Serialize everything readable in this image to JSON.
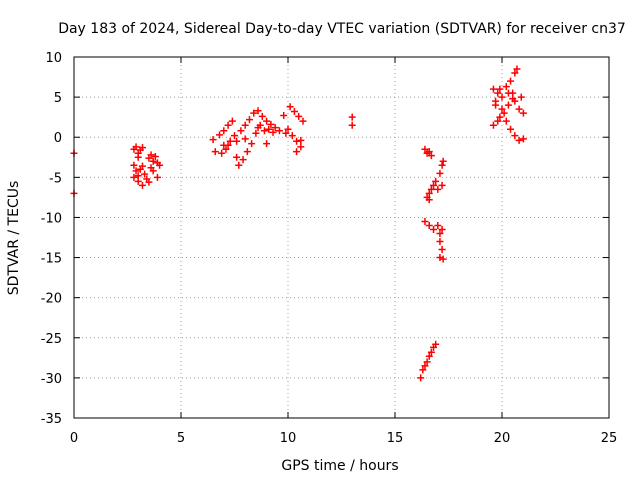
{
  "chart_data": {
    "type": "scatter",
    "title": "Day 183 of 2024, Sidereal Day-to-day VTEC variation (SDTVAR) for receiver cn37",
    "xlabel": "GPS time / hours",
    "ylabel": "SDTVAR / TECUs",
    "xlim": [
      0,
      25
    ],
    "ylim": [
      -35,
      10
    ],
    "xticks": [
      "0",
      "5",
      "10",
      "15",
      "20",
      "25"
    ],
    "yticks": [
      "10",
      "5",
      "0",
      "-5",
      "-10",
      "-15",
      "-20",
      "-25",
      "-30",
      "-35"
    ],
    "grid": true,
    "marker": "plus",
    "color": "#ff0000",
    "series": [
      {
        "name": "SDTVAR",
        "points": [
          [
            0,
            -2.0
          ],
          [
            0,
            -7.0
          ],
          [
            2.8,
            -1.5
          ],
          [
            2.9,
            -1.2
          ],
          [
            3.0,
            -2.0
          ],
          [
            3.1,
            -1.6
          ],
          [
            3.2,
            -1.3
          ],
          [
            3.0,
            -2.5
          ],
          [
            2.8,
            -3.5
          ],
          [
            2.9,
            -4.2
          ],
          [
            3.0,
            -4.8
          ],
          [
            3.1,
            -4.0
          ],
          [
            3.2,
            -3.6
          ],
          [
            2.8,
            -5.0
          ],
          [
            3.0,
            -5.5
          ],
          [
            3.2,
            -6.0
          ],
          [
            3.4,
            -5.2
          ],
          [
            3.3,
            -4.6
          ],
          [
            3.5,
            -2.6
          ],
          [
            3.6,
            -2.2
          ],
          [
            3.7,
            -3.0
          ],
          [
            3.8,
            -2.4
          ],
          [
            3.9,
            -3.2
          ],
          [
            3.6,
            -3.8
          ],
          [
            3.7,
            -4.2
          ],
          [
            3.9,
            -5.0
          ],
          [
            4.0,
            -3.5
          ],
          [
            3.5,
            -5.6
          ],
          [
            6.5,
            -0.3
          ],
          [
            6.6,
            -1.8
          ],
          [
            6.8,
            0.3
          ],
          [
            6.9,
            -2.0
          ],
          [
            7.0,
            0.8
          ],
          [
            7.1,
            -1.5
          ],
          [
            7.2,
            1.5
          ],
          [
            7.3,
            -0.5
          ],
          [
            7.4,
            2.0
          ],
          [
            7.5,
            0.2
          ],
          [
            7.6,
            -2.5
          ],
          [
            7.7,
            -3.5
          ],
          [
            7.8,
            0.8
          ],
          [
            7.9,
            -2.8
          ],
          [
            8.0,
            1.5
          ],
          [
            8.1,
            -1.8
          ],
          [
            8.2,
            2.2
          ],
          [
            8.3,
            -0.8
          ],
          [
            8.4,
            3.0
          ],
          [
            8.5,
            0.5
          ],
          [
            8.6,
            3.3
          ],
          [
            8.7,
            1.5
          ],
          [
            8.8,
            2.6
          ],
          [
            8.9,
            0.8
          ],
          [
            9.0,
            2.0
          ],
          [
            9.1,
            1.0
          ],
          [
            9.2,
            1.6
          ],
          [
            9.3,
            0.6
          ],
          [
            9.4,
            1.2
          ],
          [
            9.6,
            0.8
          ],
          [
            9.8,
            2.7
          ],
          [
            9.9,
            0.5
          ],
          [
            10.0,
            1.0
          ],
          [
            10.1,
            3.8
          ],
          [
            10.2,
            0.2
          ],
          [
            10.3,
            3.2
          ],
          [
            10.4,
            -0.5
          ],
          [
            10.5,
            2.6
          ],
          [
            10.6,
            -1.2
          ],
          [
            10.7,
            2.0
          ],
          [
            10.4,
            -1.8
          ],
          [
            10.6,
            -0.4
          ],
          [
            7.0,
            -1.0
          ],
          [
            7.2,
            -1.0
          ],
          [
            7.6,
            -0.5
          ],
          [
            8.0,
            -0.2
          ],
          [
            8.6,
            1.2
          ],
          [
            9.0,
            -0.8
          ],
          [
            13.0,
            2.5
          ],
          [
            13.0,
            1.5
          ],
          [
            16.4,
            -1.5
          ],
          [
            16.5,
            -2.0
          ],
          [
            16.6,
            -1.8
          ],
          [
            16.7,
            -2.3
          ],
          [
            16.5,
            -7.5
          ],
          [
            16.6,
            -7.0
          ],
          [
            16.7,
            -6.5
          ],
          [
            16.8,
            -6.0
          ],
          [
            16.9,
            -5.5
          ],
          [
            17.0,
            -6.5
          ],
          [
            17.1,
            -4.5
          ],
          [
            17.2,
            -3.5
          ],
          [
            17.25,
            -3.0
          ],
          [
            17.2,
            -6.0
          ],
          [
            16.6,
            -7.8
          ],
          [
            16.4,
            -10.5
          ],
          [
            16.6,
            -11.0
          ],
          [
            16.8,
            -11.5
          ],
          [
            17.0,
            -11.0
          ],
          [
            17.1,
            -12.0
          ],
          [
            17.2,
            -11.5
          ],
          [
            17.1,
            -13.0
          ],
          [
            17.2,
            -14.0
          ],
          [
            17.1,
            -15.0
          ],
          [
            17.25,
            -15.2
          ],
          [
            16.2,
            -30.0
          ],
          [
            16.3,
            -29.0
          ],
          [
            16.4,
            -28.5
          ],
          [
            16.5,
            -28.0
          ],
          [
            16.6,
            -27.3
          ],
          [
            16.7,
            -26.8
          ],
          [
            16.8,
            -26.2
          ],
          [
            16.9,
            -25.8
          ],
          [
            19.6,
            6.0
          ],
          [
            19.7,
            4.0
          ],
          [
            19.8,
            5.5
          ],
          [
            19.9,
            2.5
          ],
          [
            20.0,
            5.0
          ],
          [
            20.1,
            3.0
          ],
          [
            20.2,
            6.3
          ],
          [
            20.3,
            4.0
          ],
          [
            20.4,
            7.0
          ],
          [
            20.5,
            5.5
          ],
          [
            20.6,
            8.0
          ],
          [
            20.7,
            8.5
          ],
          [
            20.6,
            4.5
          ],
          [
            20.8,
            3.5
          ],
          [
            20.9,
            5.0
          ],
          [
            21.0,
            3.0
          ],
          [
            20.2,
            2.0
          ],
          [
            20.4,
            1.0
          ],
          [
            20.6,
            0.2
          ],
          [
            20.8,
            -0.4
          ],
          [
            21.0,
            -0.2
          ],
          [
            19.8,
            2.0
          ],
          [
            19.6,
            1.5
          ],
          [
            20.0,
            3.5
          ],
          [
            20.3,
            5.5
          ],
          [
            20.5,
            4.8
          ],
          [
            19.7,
            4.5
          ],
          [
            19.9,
            6.0
          ]
        ]
      }
    ]
  }
}
